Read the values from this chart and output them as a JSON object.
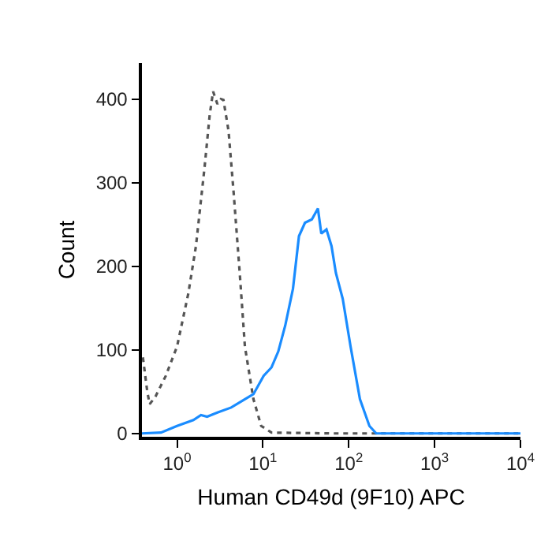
{
  "chart_data": {
    "type": "line",
    "xlabel": "Human CD49d (9F10) APC",
    "ylabel": "Count",
    "log": "x",
    "grid": false,
    "marker": "none",
    "xlim": [
      0.39,
      10000
    ],
    "ylim": [
      -4,
      443
    ],
    "xticks": [
      {
        "value": 1,
        "label": "10$^{0}$"
      },
      {
        "value": 10,
        "label": "10$^{1}$"
      },
      {
        "value": 100,
        "label": "10$^{2}$"
      },
      {
        "value": 1000,
        "label": "10$^{3}$"
      },
      {
        "value": 10000,
        "label": "10$^{4}$"
      }
    ],
    "yticks": [
      0,
      100,
      200,
      300,
      400
    ],
    "series": [
      {
        "color": "#555555",
        "line_style": "dotted",
        "x": [
          0.4,
          0.45,
          0.48,
          0.56,
          0.74,
          1,
          1.35,
          1.66,
          2.09,
          2.4,
          2.63,
          2.95,
          3.24,
          3.47,
          3.98,
          4.57,
          5.37,
          6.17,
          7.76,
          9.55,
          12.6,
          63,
          10000
        ],
        "values": [
          91,
          50,
          35,
          44,
          69,
          104,
          167,
          224,
          318,
          381,
          409,
          394,
          400,
          399,
          362,
          287,
          192,
          104,
          41,
          9,
          1,
          0,
          0
        ]
      },
      {
        "color": "#1a8cff",
        "line_style": "solid",
        "x": [
          0.39,
          0.65,
          1,
          1.55,
          1.9,
          2.24,
          2.95,
          4.27,
          5.75,
          7.76,
          10.2,
          12.6,
          15.1,
          18.2,
          22.4,
          26.3,
          30.9,
          37.2,
          43.7,
          47.9,
          55,
          63,
          70.8,
          85.1,
          105,
          135,
          174,
          209,
          10000
        ],
        "values": [
          0,
          1,
          9,
          16,
          22,
          20,
          25,
          31,
          39,
          47,
          69,
          79,
          98,
          129,
          173,
          236,
          252,
          256,
          269,
          239,
          244,
          224,
          192,
          161,
          104,
          41,
          9,
          0,
          0
        ]
      }
    ]
  }
}
